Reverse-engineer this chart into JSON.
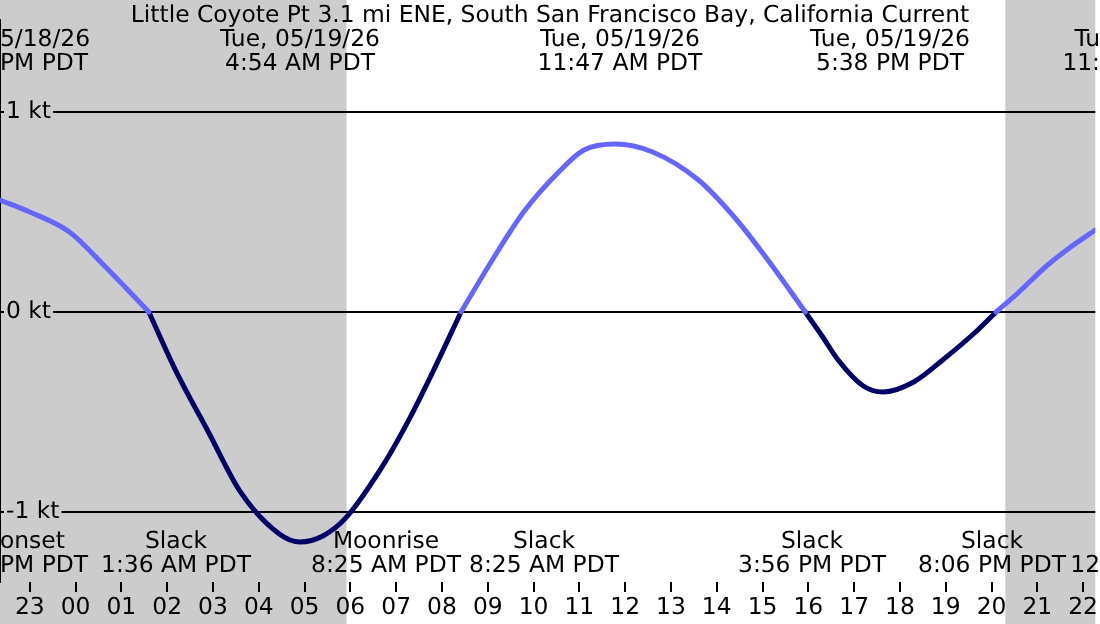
{
  "chart_data": {
    "type": "line",
    "title": "Little Coyote Pt 3.1 mi ENE, South San Francisco Bay, California Current",
    "xlim": [
      "--05-18T22:21",
      "--05-19T22:16"
    ],
    "xticks": [
      {
        "value": "--05-18T23:00",
        "label": "23"
      },
      {
        "value": "--05-19T00:00",
        "label": "00"
      },
      {
        "value": "--05-19T01:00",
        "label": "01"
      },
      {
        "value": "--05-19T02:00",
        "label": "02"
      },
      {
        "value": "--05-19T03:00",
        "label": "03"
      },
      {
        "value": "--05-19T04:00",
        "label": "04"
      },
      {
        "value": "--05-19T05:00",
        "label": "05"
      },
      {
        "value": "--05-19T06:00",
        "label": "06"
      },
      {
        "value": "--05-19T07:00",
        "label": "07"
      },
      {
        "value": "--05-19T08:00",
        "label": "08"
      },
      {
        "value": "--05-19T09:00",
        "label": "09"
      },
      {
        "value": "--05-19T10:00",
        "label": "10"
      },
      {
        "value": "--05-19T11:00",
        "label": "11"
      },
      {
        "value": "--05-19T12:00",
        "label": "12"
      },
      {
        "value": "--05-19T13:00",
        "label": "13"
      },
      {
        "value": "--05-19T14:00",
        "label": "14"
      },
      {
        "value": "--05-19T15:00",
        "label": "15"
      },
      {
        "value": "--05-19T16:00",
        "label": "16"
      },
      {
        "value": "--05-19T17:00",
        "label": "17"
      },
      {
        "value": "--05-19T18:00",
        "label": "18"
      },
      {
        "value": "--05-19T19:00",
        "label": "19"
      },
      {
        "value": "--05-19T20:00",
        "label": "20"
      },
      {
        "value": "--05-19T21:00",
        "label": "21"
      },
      {
        "value": "--05-19T22:00",
        "label": "22"
      }
    ],
    "ylim": [
      -1.35,
      1.46
    ],
    "yticks": [
      {
        "value": 1,
        "label": "1 kt"
      },
      {
        "value": 0,
        "label": "0 kt"
      },
      {
        "value": -1,
        "label": "-1 kt"
      }
    ],
    "grid": "y",
    "legend": false,
    "marker": "none",
    "line_style": "solid",
    "series": [
      {
        "color": "#6666ff",
        "x": [
          "--05-18T22:21",
          "--05-18T23:00",
          "--05-18T23:52",
          "--05-19T00:38",
          "--05-19T01:06",
          "--05-19T01:36",
          "--05-19T05:00",
          "--05-19T08:25",
          "--05-19T09:06",
          "--05-19T09:47",
          "--05-19T10:33",
          "--05-19T11:06",
          "--05-19T11:47",
          "--05-19T12:36",
          "--05-19T13:36",
          "--05-19T14:24",
          "--05-19T15:07",
          "--05-19T15:56",
          "--05-19T18:00",
          "--05-19T20:06",
          "--05-19T20:36",
          "--05-19T21:12",
          "--05-19T21:42",
          "--05-19T22:16"
        ],
        "values": [
          0.56,
          0.5,
          0.4,
          0.23,
          0.12,
          0,
          null,
          0,
          0.26,
          0.5,
          0.7,
          0.81,
          0.84,
          0.8,
          0.66,
          0.47,
          0.26,
          0,
          null,
          0,
          0.1,
          0.23,
          0.32,
          0.41
        ]
      },
      {
        "color": "#000066",
        "x": [
          "--05-19T01:36",
          "--05-19T02:12",
          "--05-19T02:54",
          "--05-19T03:36",
          "--05-19T04:27",
          "--05-19T04:54",
          "--05-19T05:24",
          "--05-19T05:54",
          "--05-19T06:44",
          "--05-19T07:18",
          "--05-19T07:48",
          "--05-19T08:25",
          "--05-19T12:00",
          "--05-19T15:56",
          "--05-19T16:18",
          "--05-19T16:39",
          "--05-19T17:12",
          "--05-19T17:38",
          "--05-19T18:18",
          "--05-19T18:56",
          "--05-19T19:42",
          "--05-19T20:06"
        ],
        "values": [
          0,
          -0.3,
          -0.6,
          -0.9,
          -1.11,
          -1.15,
          -1.12,
          -1.03,
          -0.76,
          -0.53,
          -0.3,
          0,
          null,
          0,
          -0.12,
          -0.24,
          -0.37,
          -0.4,
          -0.35,
          -0.24,
          -0.09,
          0
        ]
      }
    ],
    "bands": [
      {
        "axis": "x",
        "from": "--05-18T22:21",
        "to": "--05-19T05:55",
        "color": "#cccccc"
      },
      {
        "axis": "x",
        "from": "--05-19T20:18",
        "to": "--05-19T22:16",
        "color": "#cccccc"
      }
    ],
    "annotations": [
      "5/18/26\nPM PDT",
      "Tue, 05/19/26\n4:54 AM PDT",
      "Tue, 05/19/26\n11:47 AM PDT",
      "Tue, 05/19/26\n5:38 PM PDT",
      "Tu\n11:",
      "onset\nPM PDT",
      "Slack\n1:36 AM PDT",
      "Moonrise\n8:25 AM PDT",
      "Slack\n8:25 AM PDT",
      "Slack\n3:56 PM PDT",
      "Slack\n8:06 PM PDT",
      "12"
    ]
  }
}
